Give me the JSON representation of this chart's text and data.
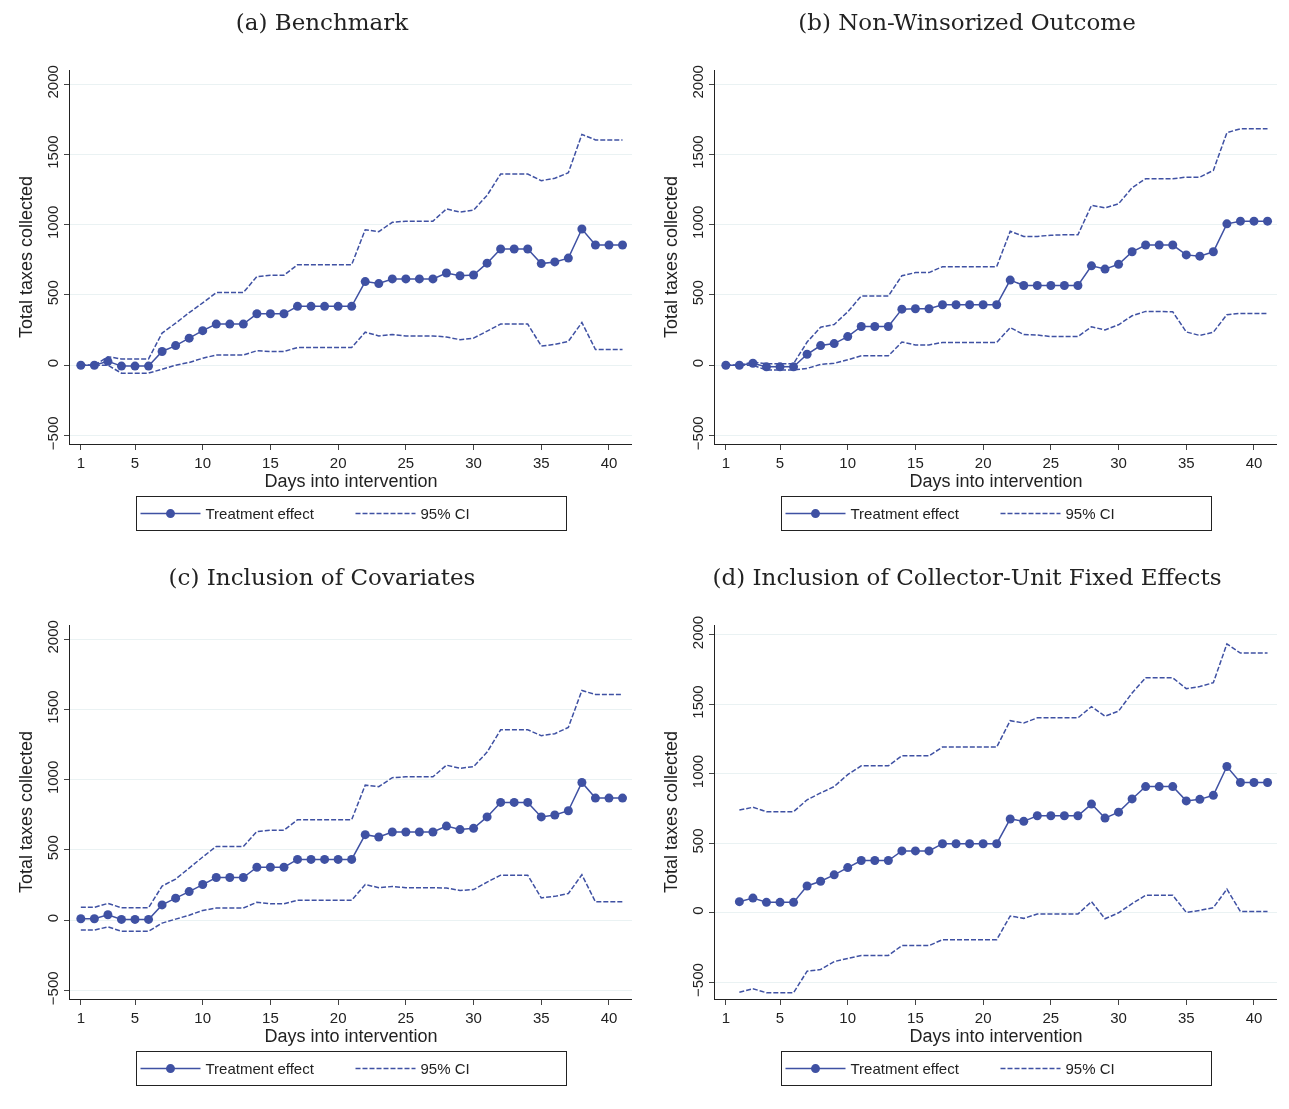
{
  "chart_data": [
    {
      "type": "line",
      "title": "(a) Benchmark",
      "xlabel": "Days into intervention",
      "ylabel": "Total taxes collected",
      "x": [
        1,
        2,
        3,
        4,
        5,
        6,
        7,
        8,
        9,
        10,
        11,
        12,
        13,
        14,
        15,
        16,
        17,
        18,
        19,
        20,
        21,
        22,
        23,
        24,
        25,
        26,
        27,
        28,
        29,
        30,
        31,
        32,
        33,
        34,
        35,
        36,
        37,
        38,
        39,
        40,
        41
      ],
      "xlim": [
        0.2,
        41.7
      ],
      "ylim": [
        -560,
        2100
      ],
      "xticks": [
        1,
        5,
        10,
        15,
        20,
        25,
        30,
        35,
        40
      ],
      "yticks": [
        -500,
        0,
        500,
        1000,
        1500,
        2000
      ],
      "grid": "y",
      "legend": "bottom",
      "series": [
        {
          "name": "Treatment effect",
          "color": "#3f51a3",
          "marker": "circle",
          "line_style": "solid",
          "values": [
            0,
            0,
            28,
            -6,
            -6,
            -6,
            98,
            140,
            193,
            246,
            293,
            293,
            293,
            366,
            366,
            366,
            419,
            419,
            419,
            419,
            419,
            595,
            581,
            614,
            614,
            614,
            614,
            656,
            637,
            642,
            726,
            827,
            827,
            827,
            723,
            735,
            762,
            969,
            855,
            855,
            855
          ]
        },
        {
          "name": "95% CI",
          "color": "#3f51a3",
          "marker": "none",
          "line_style": "dashed",
          "values": [
            0,
            0,
            61,
            45,
            45,
            45,
            229,
            299,
            374,
            444,
            517,
            517,
            517,
            631,
            640,
            640,
            715,
            715,
            715,
            715,
            715,
            964,
            950,
            1017,
            1025,
            1025,
            1025,
            1112,
            1089,
            1103,
            1209,
            1360,
            1360,
            1360,
            1313,
            1330,
            1369,
            1642,
            1603,
            1603,
            1603
          ]
        },
        {
          "color": "#3f51a3",
          "marker": "none",
          "line_style": "dashed",
          "values": [
            0,
            0,
            0,
            -56,
            -56,
            -56,
            -28,
            0,
            20,
            50,
            73,
            73,
            73,
            103,
            98,
            98,
            126,
            126,
            126,
            126,
            126,
            235,
            209,
            218,
            209,
            209,
            209,
            201,
            182,
            193,
            243,
            293,
            293,
            293,
            137,
            148,
            170,
            304,
            112,
            112,
            112
          ]
        }
      ]
    },
    {
      "type": "line",
      "title": "(b) Non-Winsorized Outcome",
      "xlabel": "Days into intervention",
      "ylabel": "Total taxes collected",
      "x": [
        1,
        2,
        3,
        4,
        5,
        6,
        7,
        8,
        9,
        10,
        11,
        12,
        13,
        14,
        15,
        16,
        17,
        18,
        19,
        20,
        21,
        22,
        23,
        24,
        25,
        26,
        27,
        28,
        29,
        30,
        31,
        32,
        33,
        34,
        35,
        36,
        37,
        38,
        39,
        40,
        41
      ],
      "xlim": [
        0.2,
        41.7
      ],
      "ylim": [
        -560,
        2100
      ],
      "xticks": [
        1,
        5,
        10,
        15,
        20,
        25,
        30,
        35,
        40
      ],
      "yticks": [
        -500,
        0,
        500,
        1000,
        1500,
        2000
      ],
      "grid": "y",
      "legend": "bottom",
      "series": [
        {
          "name": "Treatment effect",
          "color": "#3f51a3",
          "marker": "circle",
          "line_style": "solid",
          "values": [
            0,
            0,
            14,
            -11,
            -11,
            -11,
            78,
            140,
            154,
            204,
            276,
            276,
            276,
            399,
            402,
            402,
            430,
            430,
            430,
            430,
            430,
            606,
            567,
            567,
            567,
            567,
            567,
            707,
            684,
            718,
            807,
            855,
            855,
            855,
            785,
            776,
            807,
            1006,
            1025,
            1025,
            1025
          ]
        },
        {
          "name": "95% CI",
          "color": "#3f51a3",
          "marker": "none",
          "line_style": "dashed",
          "values": [
            0,
            0,
            22,
            11,
            11,
            11,
            165,
            271,
            290,
            380,
            492,
            492,
            492,
            637,
            659,
            659,
            701,
            701,
            701,
            701,
            701,
            953,
            916,
            916,
            925,
            928,
            928,
            1137,
            1120,
            1148,
            1263,
            1327,
            1327,
            1327,
            1338,
            1338,
            1386,
            1654,
            1682,
            1682,
            1682
          ]
        },
        {
          "color": "#3f51a3",
          "marker": "none",
          "line_style": "dashed",
          "values": [
            0,
            0,
            0,
            -34,
            -34,
            -34,
            -22,
            6,
            14,
            39,
            67,
            67,
            67,
            165,
            145,
            145,
            162,
            162,
            162,
            162,
            162,
            268,
            218,
            215,
            204,
            204,
            204,
            274,
            251,
            288,
            352,
            383,
            383,
            380,
            237,
            212,
            235,
            360,
            369,
            369,
            369
          ]
        }
      ]
    },
    {
      "type": "line",
      "title": "(c) Inclusion of Covariates",
      "xlabel": "Days into intervention",
      "ylabel": "Total taxes collected",
      "x": [
        1,
        2,
        3,
        4,
        5,
        6,
        7,
        8,
        9,
        10,
        11,
        12,
        13,
        14,
        15,
        16,
        17,
        18,
        19,
        20,
        21,
        22,
        23,
        24,
        25,
        26,
        27,
        28,
        29,
        30,
        31,
        32,
        33,
        34,
        35,
        36,
        37,
        38,
        39,
        40,
        41
      ],
      "xlim": [
        0.2,
        41.7
      ],
      "ylim": [
        -560,
        2100
      ],
      "xticks": [
        1,
        5,
        10,
        15,
        20,
        25,
        30,
        35,
        40
      ],
      "yticks": [
        -500,
        0,
        500,
        1000,
        1500,
        2000
      ],
      "grid": "y",
      "legend": "bottom",
      "series": [
        {
          "name": "Treatment effect",
          "color": "#3f51a3",
          "marker": "circle",
          "line_style": "solid",
          "values": [
            11,
            11,
            39,
            6,
            6,
            6,
            109,
            157,
            204,
            254,
            304,
            304,
            304,
            377,
            377,
            377,
            433,
            433,
            433,
            433,
            433,
            609,
            592,
            628,
            628,
            628,
            628,
            670,
            645,
            654,
            735,
            838,
            838,
            838,
            735,
            749,
            779,
            980,
            869,
            869,
            869
          ]
        },
        {
          "name": "95% CI",
          "color": "#3f51a3",
          "marker": "none",
          "line_style": "dashed",
          "values": [
            92,
            92,
            120,
            89,
            89,
            89,
            243,
            293,
            371,
            450,
            525,
            525,
            525,
            631,
            640,
            640,
            715,
            715,
            715,
            715,
            715,
            961,
            950,
            1014,
            1020,
            1020,
            1020,
            1103,
            1081,
            1092,
            1196,
            1355,
            1355,
            1355,
            1313,
            1327,
            1372,
            1634,
            1606,
            1606,
            1606
          ]
        },
        {
          "color": "#3f51a3",
          "marker": "none",
          "line_style": "dashed",
          "values": [
            -70,
            -70,
            -47,
            -78,
            -78,
            -78,
            -20,
            8,
            36,
            70,
            87,
            87,
            87,
            128,
            117,
            117,
            142,
            142,
            142,
            142,
            142,
            254,
            232,
            240,
            232,
            232,
            232,
            229,
            212,
            218,
            271,
            321,
            321,
            321,
            159,
            170,
            190,
            324,
            131,
            131,
            131
          ]
        }
      ]
    },
    {
      "type": "line",
      "title": "(d) Inclusion of Collector-Unit Fixed Effects",
      "xlabel": "Days into intervention",
      "ylabel": "Total taxes collected",
      "x": [
        2,
        3,
        4,
        5,
        6,
        7,
        8,
        9,
        10,
        11,
        12,
        13,
        14,
        15,
        16,
        17,
        18,
        19,
        20,
        21,
        22,
        23,
        24,
        25,
        26,
        27,
        28,
        29,
        30,
        31,
        32,
        33,
        34,
        35,
        36,
        37,
        38,
        39,
        40,
        41
      ],
      "xlim": [
        0.2,
        41.7
      ],
      "ylim": [
        -620,
        2070
      ],
      "xticks": [
        1,
        5,
        10,
        15,
        20,
        25,
        30,
        35,
        40
      ],
      "yticks": [
        -500,
        0,
        500,
        1000,
        1500,
        2000
      ],
      "grid": "y",
      "legend": "bottom",
      "series": [
        {
          "name": "Treatment effect",
          "color": "#3f51a3",
          "marker": "circle",
          "line_style": "solid",
          "values": [
            80,
            106,
            75,
            75,
            75,
            193,
            227,
            273,
            325,
            376,
            376,
            376,
            445,
            445,
            445,
            497,
            497,
            497,
            497,
            497,
            675,
            658,
            698,
            698,
            698,
            698,
            782,
            681,
            724,
            819,
            908,
            908,
            908,
            805,
            816,
            845,
            1052,
            937,
            937,
            937
          ]
        },
        {
          "name": "95% CI",
          "color": "#3f51a3",
          "marker": "none",
          "line_style": "dashed",
          "values": [
            739,
            759,
            727,
            727,
            727,
            813,
            862,
            908,
            994,
            1057,
            1057,
            1057,
            1129,
            1129,
            1129,
            1192,
            1192,
            1192,
            1192,
            1192,
            1382,
            1365,
            1402,
            1402,
            1402,
            1402,
            1483,
            1414,
            1451,
            1581,
            1690,
            1690,
            1690,
            1612,
            1627,
            1655,
            1934,
            1868,
            1868,
            1868
          ]
        },
        {
          "color": "#3f51a3",
          "marker": "none",
          "line_style": "dashed",
          "values": [
            -572,
            -546,
            -575,
            -575,
            -575,
            -420,
            -408,
            -351,
            -328,
            -307,
            -307,
            -307,
            -236,
            -236,
            -236,
            -193,
            -193,
            -193,
            -193,
            -193,
            -23,
            -40,
            -9,
            -9,
            -9,
            -9,
            80,
            -43,
            0,
            66,
            126,
            126,
            126,
            3,
            17,
            37,
            170,
            9,
            9,
            9
          ]
        }
      ]
    }
  ]
}
